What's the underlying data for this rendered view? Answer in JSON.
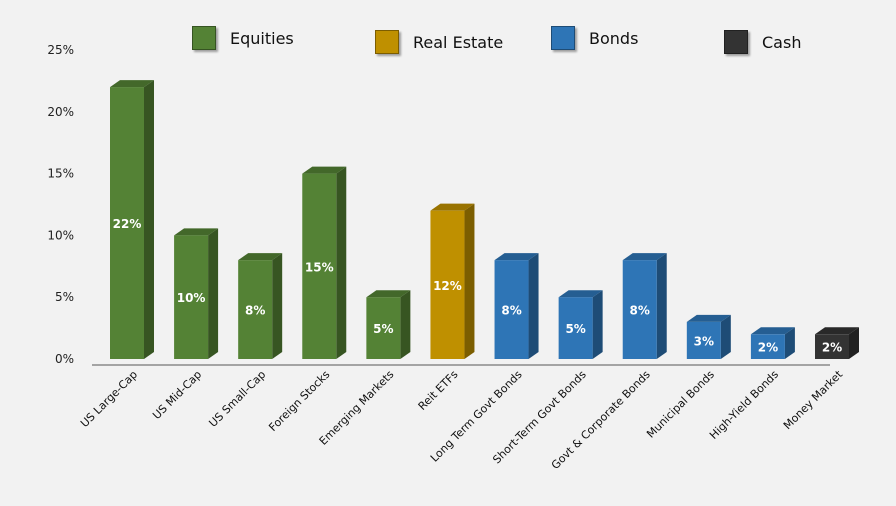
{
  "chart_data": {
    "type": "bar",
    "title": "",
    "xlabel": "",
    "ylabel": "",
    "ylim": [
      0,
      25
    ],
    "yticks": [
      "0%",
      "5%",
      "10%",
      "15%",
      "20%",
      "25%"
    ],
    "grid": false,
    "legend_position": "top",
    "legend": [
      {
        "name": "Equities",
        "color": "#548235"
      },
      {
        "name": "Real Estate",
        "color": "#bf9000"
      },
      {
        "name": "Bonds",
        "color": "#2e75b6"
      },
      {
        "name": "Cash",
        "color": "#333333"
      }
    ],
    "categories": [
      "US Large-Cap",
      "US Mid-Cap",
      "US Small-Cap",
      "Foreign Stocks",
      "Emerging Markets",
      "Reit ETFs",
      "Long Term Govt Bonds",
      "Short-Term Govt Bonds",
      "Govt & Corporate Bonds",
      "Municipal Bonds",
      "High-Yield Bonds",
      "Money Market"
    ],
    "values": [
      22,
      10,
      8,
      15,
      5,
      12,
      8,
      5,
      8,
      3,
      2,
      2
    ],
    "value_labels": [
      "22%",
      "10%",
      "8%",
      "15%",
      "5%",
      "12%",
      "8%",
      "5%",
      "8%",
      "3%",
      "2%",
      "2%"
    ],
    "bar_groups": [
      "Equities",
      "Equities",
      "Equities",
      "Equities",
      "Equities",
      "Real Estate",
      "Bonds",
      "Bonds",
      "Bonds",
      "Bonds",
      "Bonds",
      "Cash"
    ]
  }
}
